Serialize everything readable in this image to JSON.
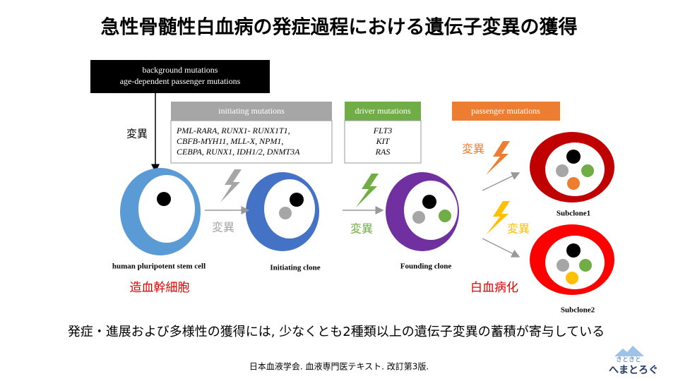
{
  "title": "急性骨髄性白血病の発症過程における遺伝子変異の獲得",
  "background": {
    "lines": [
      "background mutations",
      "age-dependent passenger mutations"
    ],
    "arrow_label": "変異"
  },
  "initiating": {
    "header": "initiating mutations",
    "lines": [
      "PML-RARA, RUNX1- RUNX1T1,",
      "CBFB-MYH11, MLL-X, NPM1,",
      "CEBPA, RUNX1, IDH1/2, DNMT3A"
    ],
    "arrow_label": "変異"
  },
  "driver": {
    "header": "driver mutations",
    "lines": [
      "FLT3",
      "KIT",
      "RAS"
    ],
    "arrow_label": "変異"
  },
  "passenger": {
    "header": "passenger mutations",
    "arrow_label_1": "変異",
    "arrow_label_2": "変異"
  },
  "cells": {
    "stem": "human pluripotent stem cell",
    "initiating": "Initiating clone",
    "founding": "Founding clone",
    "subclone1": "Subclone1",
    "subclone2": "Subclone2"
  },
  "notes": {
    "stem_jp": "造血幹細胞",
    "leukemia_jp": "白血病化"
  },
  "conclusion": "発症・進展および多様性の獲得には, 少なくとも2種類以上の遺伝子変異の蓄積が寄与している",
  "reference": "日本血液学会. 血液専門医テキスト. 改訂第3版.",
  "logo": {
    "top": "きときと",
    "bottom": "へまとろぐ"
  }
}
